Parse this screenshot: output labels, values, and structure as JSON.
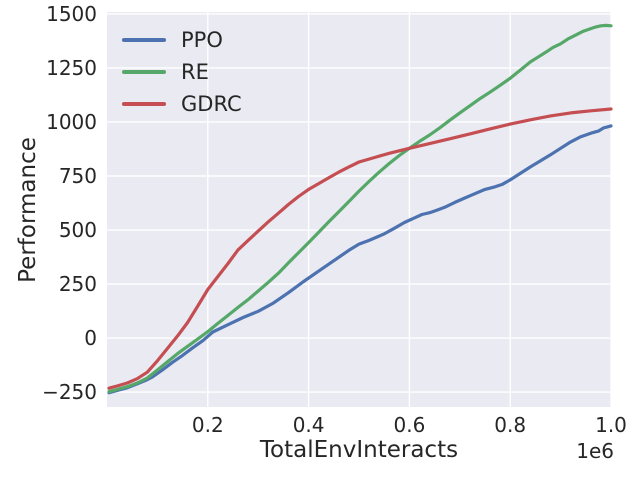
{
  "chart_data": {
    "type": "line",
    "title": "",
    "xlabel": "TotalEnvInteracts",
    "ylabel": "Performance",
    "x_offset_label": "1e6",
    "x_unit_scale": 1000000,
    "xlim": [
      0.0,
      1.0
    ],
    "ylim": [
      -319,
      1509
    ],
    "grid": true,
    "legend_position": "upper-left",
    "colors": {
      "axes_bg": "#eaeaf2",
      "grid": "#ffffff",
      "text": "#262626"
    },
    "xticks": [
      {
        "v": 0.2,
        "label": "0.2"
      },
      {
        "v": 0.4,
        "label": "0.4"
      },
      {
        "v": 0.6,
        "label": "0.6"
      },
      {
        "v": 0.8,
        "label": "0.8"
      },
      {
        "v": 1.0,
        "label": "1.0"
      }
    ],
    "yticks": [
      {
        "v": -250,
        "label": "−250"
      },
      {
        "v": 0,
        "label": "0"
      },
      {
        "v": 250,
        "label": "250"
      },
      {
        "v": 500,
        "label": "500"
      },
      {
        "v": 750,
        "label": "750"
      },
      {
        "v": 1000,
        "label": "1000"
      },
      {
        "v": 1250,
        "label": "1250"
      },
      {
        "v": 1500,
        "label": "1500"
      }
    ],
    "series": [
      {
        "name": "PPO",
        "color": "#4c72b0",
        "points": [
          [
            0.004,
            -253
          ],
          [
            0.02,
            -242
          ],
          [
            0.04,
            -230
          ],
          [
            0.06,
            -212
          ],
          [
            0.08,
            -192
          ],
          [
            0.09,
            -180
          ],
          [
            0.11,
            -148
          ],
          [
            0.13,
            -112
          ],
          [
            0.15,
            -80
          ],
          [
            0.17,
            -45
          ],
          [
            0.19,
            -12
          ],
          [
            0.21,
            28
          ],
          [
            0.24,
            62
          ],
          [
            0.27,
            95
          ],
          [
            0.3,
            124
          ],
          [
            0.33,
            162
          ],
          [
            0.36,
            210
          ],
          [
            0.39,
            262
          ],
          [
            0.42,
            310
          ],
          [
            0.45,
            358
          ],
          [
            0.48,
            406
          ],
          [
            0.5,
            435
          ],
          [
            0.52,
            452
          ],
          [
            0.55,
            482
          ],
          [
            0.57,
            508
          ],
          [
            0.59,
            535
          ],
          [
            0.61,
            556
          ],
          [
            0.625,
            572
          ],
          [
            0.64,
            580
          ],
          [
            0.655,
            592
          ],
          [
            0.67,
            605
          ],
          [
            0.69,
            628
          ],
          [
            0.71,
            648
          ],
          [
            0.73,
            668
          ],
          [
            0.75,
            688
          ],
          [
            0.77,
            700
          ],
          [
            0.785,
            712
          ],
          [
            0.8,
            732
          ],
          [
            0.82,
            762
          ],
          [
            0.84,
            792
          ],
          [
            0.86,
            820
          ],
          [
            0.88,
            848
          ],
          [
            0.9,
            878
          ],
          [
            0.92,
            908
          ],
          [
            0.94,
            932
          ],
          [
            0.96,
            948
          ],
          [
            0.975,
            958
          ],
          [
            0.985,
            972
          ],
          [
            1.0,
            982
          ]
        ]
      },
      {
        "name": "RE",
        "color": "#55a868",
        "points": [
          [
            0.004,
            -248
          ],
          [
            0.02,
            -238
          ],
          [
            0.04,
            -225
          ],
          [
            0.06,
            -208
          ],
          [
            0.08,
            -185
          ],
          [
            0.1,
            -148
          ],
          [
            0.12,
            -110
          ],
          [
            0.14,
            -72
          ],
          [
            0.16,
            -38
          ],
          [
            0.18,
            -5
          ],
          [
            0.2,
            30
          ],
          [
            0.22,
            68
          ],
          [
            0.24,
            105
          ],
          [
            0.26,
            142
          ],
          [
            0.28,
            178
          ],
          [
            0.3,
            218
          ],
          [
            0.32,
            258
          ],
          [
            0.34,
            300
          ],
          [
            0.36,
            348
          ],
          [
            0.38,
            395
          ],
          [
            0.4,
            442
          ],
          [
            0.42,
            490
          ],
          [
            0.44,
            538
          ],
          [
            0.46,
            585
          ],
          [
            0.48,
            632
          ],
          [
            0.5,
            680
          ],
          [
            0.52,
            725
          ],
          [
            0.54,
            768
          ],
          [
            0.56,
            808
          ],
          [
            0.58,
            845
          ],
          [
            0.6,
            878
          ],
          [
            0.62,
            910
          ],
          [
            0.64,
            940
          ],
          [
            0.66,
            972
          ],
          [
            0.68,
            1008
          ],
          [
            0.7,
            1042
          ],
          [
            0.72,
            1075
          ],
          [
            0.74,
            1108
          ],
          [
            0.76,
            1138
          ],
          [
            0.78,
            1170
          ],
          [
            0.8,
            1202
          ],
          [
            0.82,
            1240
          ],
          [
            0.84,
            1278
          ],
          [
            0.855,
            1300
          ],
          [
            0.87,
            1322
          ],
          [
            0.885,
            1345
          ],
          [
            0.9,
            1362
          ],
          [
            0.915,
            1385
          ],
          [
            0.93,
            1402
          ],
          [
            0.945,
            1420
          ],
          [
            0.96,
            1432
          ],
          [
            0.97,
            1440
          ],
          [
            0.98,
            1445
          ],
          [
            0.99,
            1447
          ],
          [
            1.0,
            1445
          ]
        ]
      },
      {
        "name": "GDRC",
        "color": "#c44e52",
        "points": [
          [
            0.004,
            -232
          ],
          [
            0.02,
            -222
          ],
          [
            0.04,
            -208
          ],
          [
            0.06,
            -188
          ],
          [
            0.08,
            -158
          ],
          [
            0.1,
            -105
          ],
          [
            0.12,
            -48
          ],
          [
            0.14,
            10
          ],
          [
            0.16,
            72
          ],
          [
            0.18,
            148
          ],
          [
            0.2,
            225
          ],
          [
            0.22,
            285
          ],
          [
            0.24,
            345
          ],
          [
            0.26,
            408
          ],
          [
            0.28,
            452
          ],
          [
            0.3,
            495
          ],
          [
            0.32,
            538
          ],
          [
            0.34,
            578
          ],
          [
            0.36,
            618
          ],
          [
            0.38,
            655
          ],
          [
            0.4,
            688
          ],
          [
            0.42,
            715
          ],
          [
            0.44,
            742
          ],
          [
            0.46,
            768
          ],
          [
            0.48,
            792
          ],
          [
            0.5,
            815
          ],
          [
            0.53,
            835
          ],
          [
            0.56,
            855
          ],
          [
            0.6,
            878
          ],
          [
            0.64,
            900
          ],
          [
            0.68,
            922
          ],
          [
            0.72,
            945
          ],
          [
            0.76,
            968
          ],
          [
            0.8,
            990
          ],
          [
            0.84,
            1010
          ],
          [
            0.88,
            1028
          ],
          [
            0.92,
            1042
          ],
          [
            0.96,
            1052
          ],
          [
            1.0,
            1060
          ]
        ]
      }
    ]
  }
}
